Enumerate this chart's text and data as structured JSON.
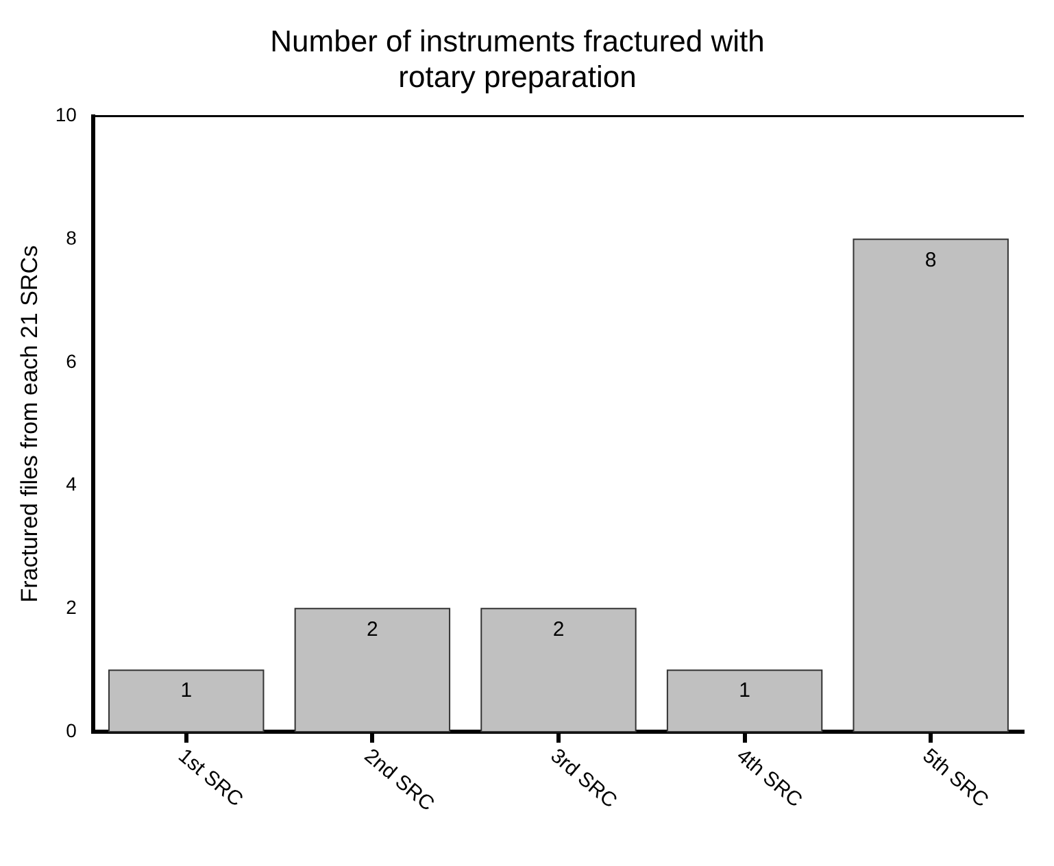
{
  "chart_data": {
    "type": "bar",
    "title": [
      "Number of instruments fractured with",
      "rotary preparation"
    ],
    "ylabel": "Fractured files from each 21 SRCs",
    "categories": [
      "1st SRC",
      "2nd SRC",
      "3rd SRC",
      "4th SRC",
      "5th SRC"
    ],
    "values": [
      1,
      2,
      2,
      1,
      8
    ],
    "color": "#c0c0c0",
    "ylim": [
      0,
      10
    ],
    "yticks": [
      0,
      2,
      4,
      6,
      8,
      10
    ],
    "grid": false,
    "legend": false,
    "data_labels": true
  }
}
